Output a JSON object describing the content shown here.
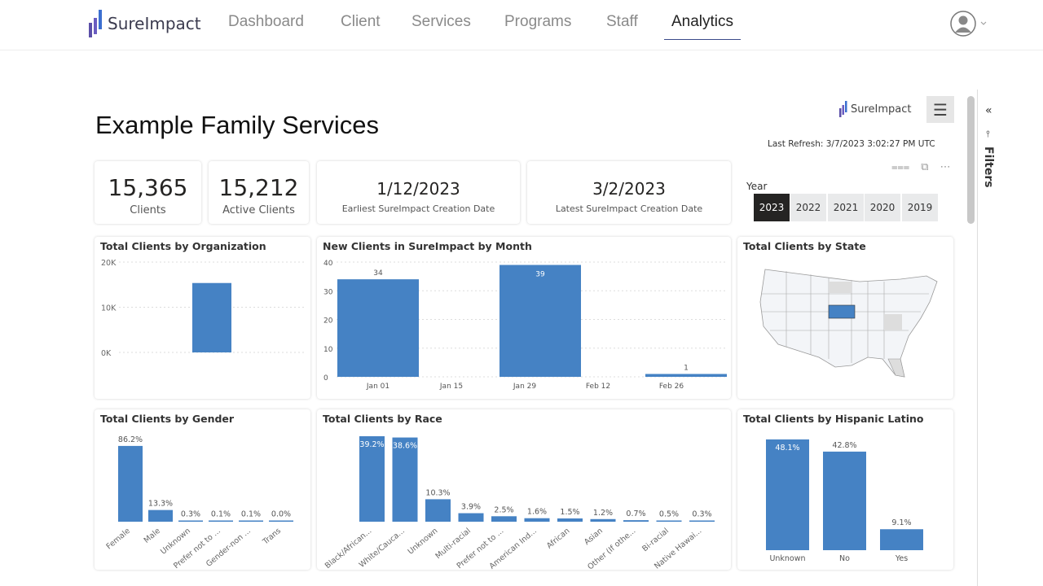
{
  "nav": {
    "brand": "SureImpact",
    "items": [
      "Dashboard",
      "Client",
      "Services",
      "Programs",
      "Staff",
      "Analytics"
    ],
    "active": "Analytics"
  },
  "report": {
    "title": "Example Family Services",
    "brand": "SureImpact",
    "last_refresh": "Last Refresh: 3/7/2023 3:02:27 PM UTC",
    "filters_label": "Filters",
    "kpis": [
      {
        "value": "15,365",
        "label": "Clients"
      },
      {
        "value": "15,212",
        "label": "Active Clients"
      },
      {
        "value": "1/12/2023",
        "label": "Earliest SureImpact Creation Date"
      },
      {
        "value": "3/2/2023",
        "label": "Latest SureImpact Creation Date"
      }
    ],
    "year_slicer": {
      "label": "Year",
      "options": [
        "2023",
        "2022",
        "2021",
        "2020",
        "2019"
      ],
      "selected": "2023"
    },
    "accent": "#4582c4"
  },
  "chart_data": [
    {
      "id": "org",
      "type": "bar",
      "title": "Total Clients by Organization",
      "values": [
        15365
      ],
      "yticks": [
        "0K",
        "10K",
        "20K"
      ],
      "ylim": [
        0,
        20000
      ]
    },
    {
      "id": "month",
      "type": "bar",
      "title": "New Clients in SureImpact by Month",
      "x": [
        "Jan 01",
        "Jan 29",
        "Feb 26"
      ],
      "values": [
        34,
        39,
        1
      ],
      "xticks": [
        "Jan 01",
        "Jan 15",
        "Jan 29",
        "Feb 12",
        "Feb 26"
      ],
      "yticks": [
        "0",
        "10",
        "20",
        "30",
        "40"
      ],
      "ylim": [
        0,
        40
      ]
    },
    {
      "id": "state",
      "type": "map",
      "title": "Total Clients by State",
      "highlight": "Nebraska"
    },
    {
      "id": "gender",
      "type": "bar",
      "title": "Total Clients by Gender",
      "categories": [
        "Female",
        "Male",
        "Unknown",
        "Prefer not to ...",
        "Gender-non ...",
        "Trans"
      ],
      "values": [
        86.2,
        13.3,
        0.3,
        0.1,
        0.1,
        0.0
      ],
      "labels": [
        "86.2%",
        "13.3%",
        "0.3%",
        "0.1%",
        "0.1%",
        "0.0%"
      ]
    },
    {
      "id": "race",
      "type": "bar",
      "title": "Total Clients by Race",
      "categories": [
        "Black/African...",
        "White/Cauca...",
        "Unknown",
        "Multi-racial",
        "Prefer not to ...",
        "American Ind...",
        "African",
        "Asian",
        "Other (If othe...",
        "Bi-racial",
        "Native Hawai..."
      ],
      "values": [
        39.2,
        38.6,
        10.3,
        3.9,
        2.5,
        1.6,
        1.5,
        1.2,
        0.7,
        0.5,
        0.3
      ],
      "labels": [
        "39.2%",
        "38.6%",
        "10.3%",
        "3.9%",
        "2.5%",
        "1.6%",
        "1.5%",
        "1.2%",
        "0.7%",
        "0.5%",
        "0.3%"
      ]
    },
    {
      "id": "hisp",
      "type": "bar",
      "title": "Total Clients by Hispanic Latino",
      "categories": [
        "Unknown",
        "No",
        "Yes"
      ],
      "values": [
        48.1,
        42.8,
        9.1
      ],
      "labels": [
        "48.1%",
        "42.8%",
        "9.1%"
      ]
    }
  ]
}
